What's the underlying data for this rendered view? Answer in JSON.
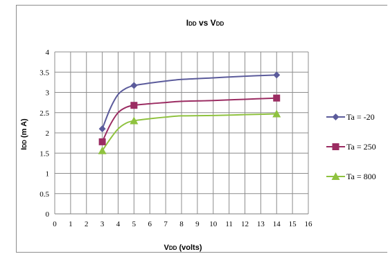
{
  "chart_data": {
    "type": "line",
    "title": {
      "main": "I",
      "main_sub": "DD",
      "mid": " vs V",
      "mid_sub": "DD"
    },
    "xlabel": {
      "main": "V",
      "main_sub": "DD",
      "rest": " (volts)"
    },
    "ylabel": {
      "main": "I",
      "main_sub": "DD",
      "rest": " (m A)"
    },
    "xlim": [
      0,
      16
    ],
    "ylim": [
      0,
      4
    ],
    "x_ticks": [
      "0",
      "1",
      "2",
      "3",
      "4",
      "5",
      "6",
      "7",
      "8",
      "9",
      "10",
      "11",
      "12",
      "13",
      "14",
      "15",
      "16"
    ],
    "y_ticks": [
      "0",
      "0.5",
      "1",
      "1.5",
      "2",
      "2.5",
      "3",
      "3.5",
      "4"
    ],
    "grid": true,
    "legend_position": "right",
    "smooth": true,
    "series": [
      {
        "name": "Ta = -20",
        "color": "#5b5b9b",
        "marker": "diamond",
        "x": [
          3,
          5,
          14
        ],
        "y": [
          2.1,
          3.17,
          3.43
        ],
        "curve_x": [
          3,
          3.5,
          4,
          4.5,
          5,
          6,
          7,
          8,
          10,
          12,
          14
        ],
        "curve_y": [
          2.1,
          2.6,
          2.95,
          3.1,
          3.17,
          3.23,
          3.28,
          3.32,
          3.36,
          3.4,
          3.43
        ]
      },
      {
        "name": "Ta = 250",
        "color": "#9b2c62",
        "marker": "square",
        "x": [
          3,
          5,
          14
        ],
        "y": [
          1.78,
          2.68,
          2.86
        ],
        "curve_x": [
          3,
          3.5,
          4,
          4.5,
          5,
          6,
          7,
          8,
          10,
          12,
          14
        ],
        "curve_y": [
          1.78,
          2.2,
          2.5,
          2.63,
          2.68,
          2.72,
          2.75,
          2.78,
          2.8,
          2.83,
          2.86
        ]
      },
      {
        "name": "Ta = 800",
        "color": "#8fc23f",
        "marker": "triangle",
        "x": [
          3,
          5,
          14
        ],
        "y": [
          1.56,
          2.3,
          2.47
        ],
        "curve_x": [
          3,
          3.5,
          4,
          4.5,
          5,
          6,
          7,
          8,
          10,
          12,
          14
        ],
        "curve_y": [
          1.56,
          1.85,
          2.1,
          2.24,
          2.3,
          2.35,
          2.39,
          2.42,
          2.43,
          2.45,
          2.47
        ]
      }
    ]
  }
}
